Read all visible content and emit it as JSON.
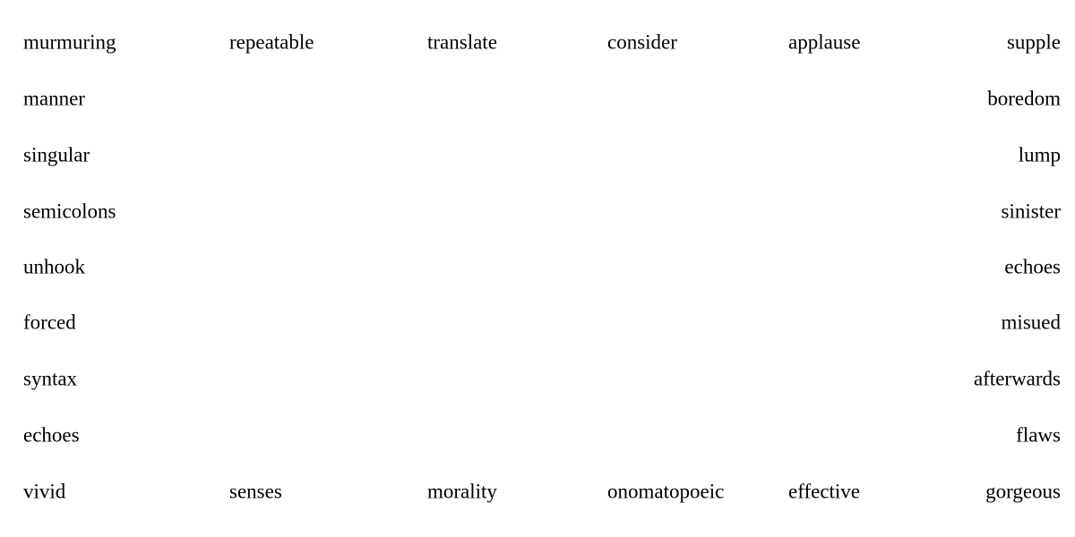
{
  "top_row": [
    "murmuring",
    "repeatable",
    "translate",
    "consider",
    "applause",
    "supple"
  ],
  "left_column": [
    "manner",
    "singular",
    "semicolons",
    "unhook",
    "forced",
    "syntax",
    "echoes"
  ],
  "right_column": [
    "boredom",
    "lump",
    "sinister",
    "echoes",
    "misued",
    "afterwards",
    "flaws"
  ],
  "bottom_row": [
    "vivid",
    "senses",
    "morality",
    "onomatopoeic",
    "effective",
    "gorgeous"
  ]
}
